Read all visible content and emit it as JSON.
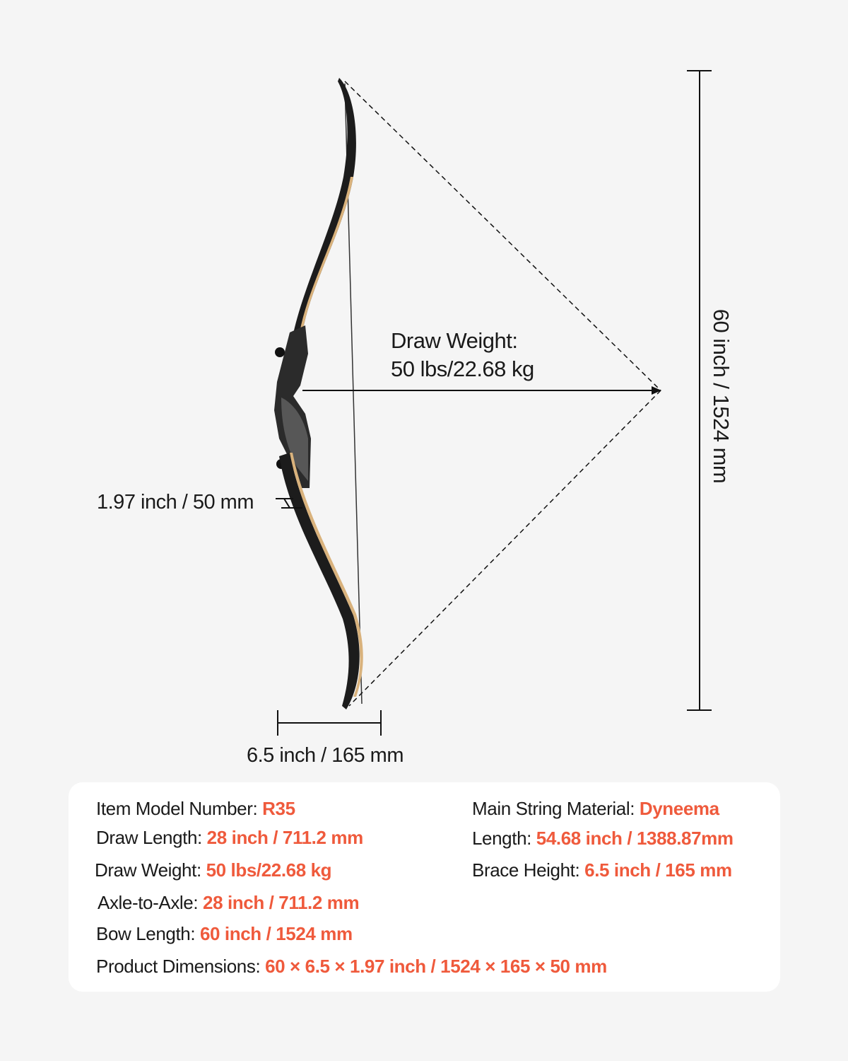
{
  "diagram": {
    "draw_weight_label": "Draw Weight:",
    "draw_weight_value": "50 lbs/22.68 kg",
    "height_label": "60 inch / 1524 mm",
    "limb_width_label": "1.97 inch / 50 mm",
    "brace_label": "6.5 inch / 165 mm"
  },
  "specs": {
    "left": [
      {
        "label": "Item Model Number: ",
        "value": "R35"
      },
      {
        "label": "Draw Length: ",
        "value": "28 inch / 711.2 mm"
      },
      {
        "label": "Draw Weight:  ",
        "value": "50 lbs/22.68 kg"
      },
      {
        "label": "Axle-to-Axle: ",
        "value": "28 inch / 711.2 mm"
      },
      {
        "label": "Bow Length:  ",
        "value": "60 inch / 1524 mm"
      },
      {
        "label": "Product Dimensions: ",
        "value": "60 × 6.5 × 1.97 inch / 1524 × 165 × 50 mm"
      }
    ],
    "right": [
      {
        "label": "Main String Material: ",
        "value": "Dyneema"
      },
      {
        "label": "Length: ",
        "value": "54.68 inch / 1388.87mm"
      },
      {
        "label": "Brace Height: ",
        "value": "6.5 inch / 165 mm"
      }
    ]
  },
  "colors": {
    "accent": "#ef5a3c",
    "background": "#f5f5f5",
    "bow": "#1c1c1c",
    "laminate": "#d9b27c"
  }
}
